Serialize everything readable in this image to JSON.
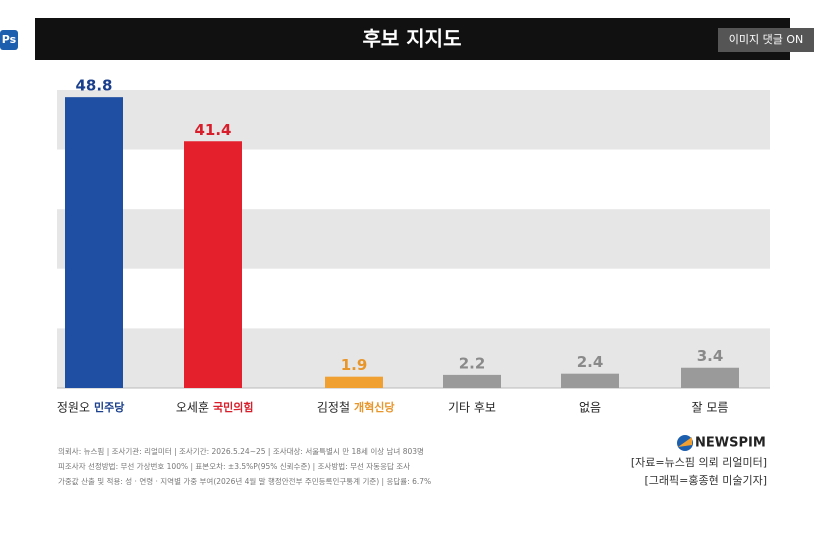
{
  "chart_data": {
    "type": "bar",
    "title": "후보 지지도",
    "categories": [
      "정원오",
      "오세훈",
      "김정철",
      "기타 후보",
      "없음",
      "잘 모름"
    ],
    "party_labels": [
      "민주당",
      "국민의힘",
      "개혁신당",
      null,
      null,
      null
    ],
    "values": [
      48.8,
      41.4,
      1.9,
      2.2,
      2.4,
      3.4
    ],
    "colors": [
      "#1f4fa3",
      "#e3202c",
      "#f0a030",
      "#9a9a9a",
      "#9a9a9a",
      "#9a9a9a"
    ],
    "label_colors": [
      "#1a3f8c",
      "#d81e2a",
      "#e8962a",
      "#8a8a8a",
      "#8a8a8a",
      "#8a8a8a"
    ],
    "ylim": [
      0,
      50
    ]
  },
  "notes": [
    "의뢰사: 뉴스핌 | 조사기관: 리얼미터 | 조사기간: 2026.5.24~25 | 조사대상: 서울특별시 만 18세 이상 남녀 803명",
    "피조사자 선정방법: 무선 가상번호 100% | 표본오차: ±3.5%P(95% 신뢰수준) | 조사방법: 무선 자동응답 조사",
    "가중값 산출 및 적용: 성 · 연령 · 지역별 가중 부여(2026년 4월 말 행정안전부 주민등록인구통계 기준) | 응답률: 6.7%"
  ],
  "brand": "NEWSPIM",
  "credits": [
    "[자료=뉴스핌 의뢰 리얼미터]",
    "[그래픽=홍종현 미술기자]"
  ],
  "ui": {
    "button": "이미지 댓글 ON",
    "app_icon": "Ps"
  }
}
